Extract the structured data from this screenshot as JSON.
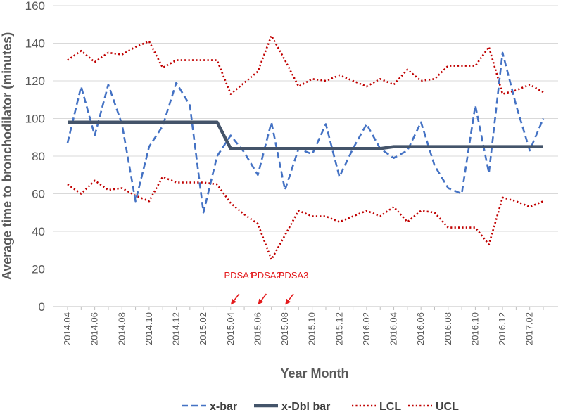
{
  "chart_data": {
    "type": "line",
    "title": "",
    "xlabel": "Year Month",
    "ylabel": "Average time to bronchodilator (minutes)",
    "ylim": [
      0,
      160
    ],
    "yticks": [
      0,
      20,
      40,
      60,
      80,
      100,
      120,
      140,
      160
    ],
    "grid": true,
    "legend_position": "bottom",
    "x": [
      "2014.04",
      "2014.05",
      "2014.06",
      "2014.07",
      "2014.08",
      "2014.09",
      "2014.10",
      "2014.11",
      "2014.12",
      "2015.01",
      "2015.02",
      "2015.03",
      "2015.04",
      "2015.05",
      "2015.06",
      "2015.07",
      "2015.08",
      "2015.09",
      "2015.10",
      "2015.11",
      "2015.12",
      "2016.01",
      "2016.02",
      "2016.03",
      "2016.04",
      "2016.05",
      "2016.06",
      "2016.07",
      "2016.08",
      "2016.09",
      "2016.10",
      "2016.11",
      "2016.12",
      "2017.01",
      "2017.02",
      "2017.03"
    ],
    "tick_labels": [
      "2014.04",
      "2014.06",
      "2014.08",
      "2014.10",
      "2014.12",
      "2015.02",
      "2015.04",
      "2015.06",
      "2015.08",
      "2015.10",
      "2015.12",
      "2016.02",
      "2016.04",
      "2016.06",
      "2016.08",
      "2016.10",
      "2016.12",
      "2017.02"
    ],
    "series": [
      {
        "name": "x-bar",
        "color": "#4472c4",
        "style": "dashed",
        "values": [
          87,
          117,
          91,
          118,
          97,
          56,
          85,
          96,
          119,
          107,
          50,
          80,
          91,
          82,
          70,
          98,
          62,
          84,
          81,
          97,
          69,
          84,
          97,
          84,
          79,
          83,
          98,
          75,
          63,
          60,
          107,
          71,
          135,
          107,
          83,
          100
        ]
      },
      {
        "name": "x-Dbl bar",
        "color": "#44546a",
        "style": "solid",
        "values": [
          98,
          98,
          98,
          98,
          98,
          98,
          98,
          98,
          98,
          98,
          98,
          98,
          84,
          84,
          84,
          84,
          84,
          84,
          84,
          84,
          84,
          84,
          84,
          84,
          85,
          85,
          85,
          85,
          85,
          85,
          85,
          85,
          85,
          85,
          85,
          85
        ]
      },
      {
        "name": "LCL",
        "color": "#c00000",
        "style": "dotted",
        "values": [
          65,
          60,
          67,
          62,
          63,
          59,
          56,
          69,
          66,
          66,
          66,
          65,
          55,
          49,
          44,
          25,
          38,
          51,
          48,
          48,
          45,
          48,
          51,
          48,
          53,
          45,
          51,
          50,
          42,
          42,
          42,
          33,
          58,
          56,
          53,
          56
        ]
      },
      {
        "name": "UCL",
        "color": "#c00000",
        "style": "dotted",
        "values": [
          131,
          136,
          130,
          135,
          134,
          138,
          141,
          127,
          131,
          131,
          131,
          131,
          113,
          119,
          125,
          144,
          131,
          117,
          121,
          120,
          123,
          120,
          117,
          121,
          118,
          126,
          120,
          121,
          128,
          128,
          128,
          138,
          113,
          115,
          118,
          114
        ]
      }
    ],
    "annotations": [
      {
        "label": "PDSA1",
        "x": "2015.04",
        "color": "#e31a1c"
      },
      {
        "label": "PDSA2",
        "x": "2015.06",
        "color": "#e31a1c"
      },
      {
        "label": "PDSA3",
        "x": "2015.08",
        "color": "#e31a1c"
      }
    ]
  }
}
